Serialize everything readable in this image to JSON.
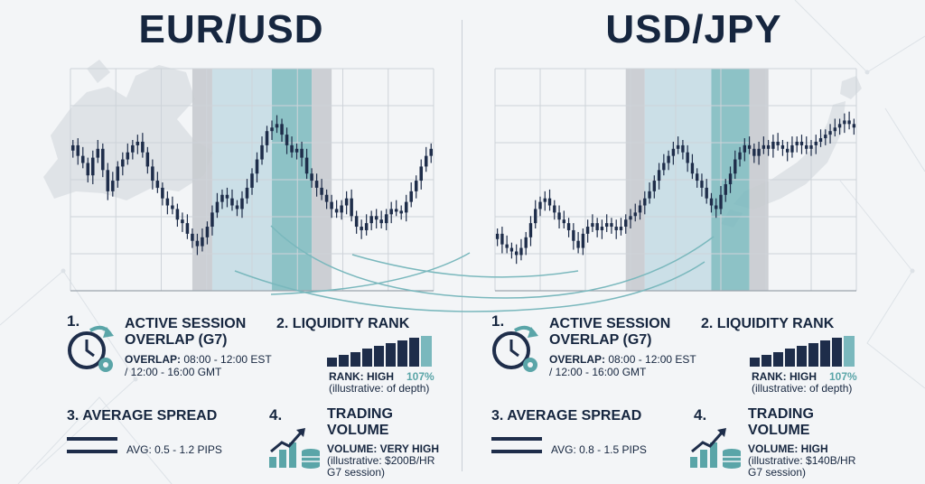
{
  "colors": {
    "candle": "#1e2d4a",
    "teal_band": "#7ab8bd",
    "light_teal_band": "#c6dde4",
    "gray_band": "#c8cbcf",
    "map": "#dfe3e7",
    "grid": "#ced3d9",
    "accent": "#5aa5a8"
  },
  "icons": [
    "clock-gear-icon",
    "bar-rank-icon",
    "spread-lines-icon",
    "volume-growth-icon"
  ],
  "panels": [
    {
      "pair": "EUR/USD",
      "map_icon": "europe-map-icon",
      "session": {
        "number": "1.",
        "title_line1": "ACTIVE SESSION",
        "title_line2": "OVERLAP (G7)",
        "label": "OVERLAP:",
        "line1": " 08:00 - 12:00 EST",
        "line2": "/ 12:00 - 16:00 GMT"
      },
      "liquidity": {
        "number": "2.",
        "title": "LIQUIDITY RANK",
        "rank": "RANK: HIGH",
        "pct": "107%",
        "note": "(illustrative: of depth)"
      },
      "spread": {
        "number": "3.",
        "title": "AVERAGE SPREAD",
        "value": "AVG: 0.5 - 1.2 PIPS"
      },
      "volume": {
        "number": "4.",
        "title_line1": "TRADING",
        "title_line2": "VOLUME",
        "value": "VOLUME: VERY HIGH",
        "note1": "(illustrative: $200B/HR",
        "note2": "G7 session)"
      }
    },
    {
      "pair": "USD/JPY",
      "map_icon": "japan-map-icon",
      "session": {
        "number": "1.",
        "title_line1": "ACTIVE SESSION",
        "title_line2": "OVERLAP (G7)",
        "label": "OVERLAP:",
        "line1": " 08:00 - 12:00 EST",
        "line2": "/ 12:00 - 16:00 GMT"
      },
      "liquidity": {
        "number": "2.",
        "title": "LIQUIDITY RANK",
        "rank": "RANK: HIGH",
        "pct": "107%",
        "note": "(illustrative: of depth)"
      },
      "spread": {
        "number": "3.",
        "title": "AVERAGE SPREAD",
        "value": "AVG: 0.8 - 1.5 PIPS"
      },
      "volume": {
        "number": "4.",
        "title_line1": "TRADING",
        "title_line2": "VOLUME",
        "value": "VOLUME: HIGH",
        "note1": "(illustrative: $140B/HR",
        "note2": "G7 session)"
      }
    }
  ],
  "chart_data": [
    {
      "type": "candlestick",
      "title": "EUR/USD",
      "xlabel": "",
      "ylabel": "",
      "ylim": [
        0,
        100
      ],
      "bands": [
        {
          "kind": "gray",
          "start": 24.5,
          "end": 28.5
        },
        {
          "kind": "light_teal",
          "start": 28.5,
          "end": 40.5
        },
        {
          "kind": "teal",
          "start": 40.5,
          "end": 48.5
        },
        {
          "kind": "gray",
          "start": 48.5,
          "end": 52.5
        }
      ],
      "closes": [
        72,
        66,
        62,
        55,
        65,
        70,
        58,
        46,
        52,
        60,
        64,
        68,
        72,
        74,
        68,
        60,
        52,
        48,
        42,
        38,
        36,
        30,
        28,
        22,
        18,
        15,
        20,
        26,
        34,
        40,
        44,
        42,
        38,
        36,
        42,
        48,
        56,
        64,
        72,
        80,
        82,
        84,
        78,
        72,
        68,
        70,
        65,
        56,
        52,
        48,
        44,
        40,
        36,
        34,
        38,
        42,
        32,
        26,
        24,
        28,
        32,
        30,
        28,
        33,
        36,
        35,
        34,
        40,
        46,
        52,
        60,
        66,
        70
      ]
    },
    {
      "type": "candlestick",
      "title": "USD/JPY",
      "xlabel": "",
      "ylabel": "",
      "ylim": [
        0,
        100
      ],
      "bands": [
        {
          "kind": "gray",
          "start": 27.5,
          "end": 31.5
        },
        {
          "kind": "light_teal",
          "start": 31.5,
          "end": 45.5
        },
        {
          "kind": "teal",
          "start": 45.5,
          "end": 53.5
        },
        {
          "kind": "gray",
          "start": 53.5,
          "end": 57.5
        }
      ],
      "closes": [
        22,
        16,
        14,
        12,
        10,
        14,
        20,
        28,
        36,
        40,
        42,
        38,
        34,
        30,
        28,
        24,
        18,
        14,
        22,
        26,
        28,
        24,
        26,
        28,
        26,
        24,
        26,
        30,
        32,
        34,
        38,
        42,
        46,
        52,
        58,
        62,
        66,
        70,
        72,
        68,
        62,
        56,
        52,
        48,
        42,
        38,
        36,
        44,
        50,
        56,
        64,
        68,
        72,
        70,
        66,
        70,
        72,
        70,
        74,
        72,
        70,
        68,
        72,
        74,
        72,
        70,
        72,
        74,
        76,
        78,
        80,
        82,
        84,
        86,
        84,
        82
      ]
    }
  ]
}
